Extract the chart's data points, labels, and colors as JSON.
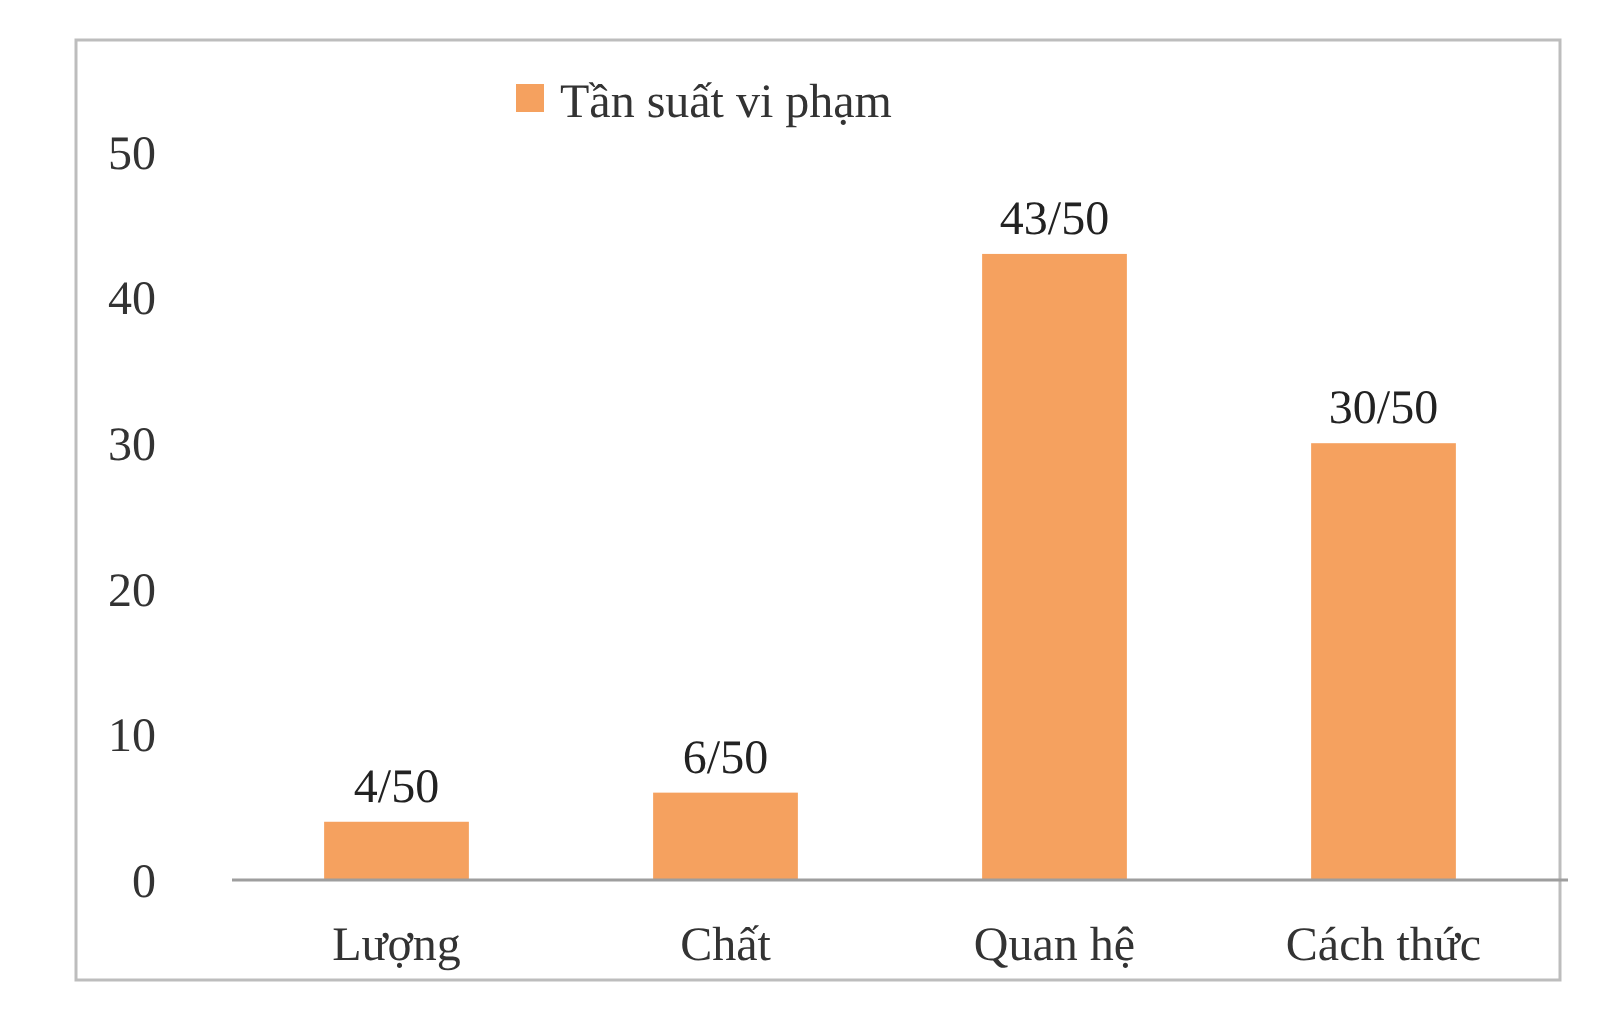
{
  "chart_data": {
    "type": "bar",
    "categories": [
      "Lượng",
      "Chất",
      "Quan hệ",
      "Cách thức"
    ],
    "series": [
      {
        "name": "Tần suất vi phạm",
        "color": "#f5a15f",
        "values": [
          4,
          6,
          43,
          30
        ],
        "value_labels": [
          "4/50",
          "6/50",
          "43/50",
          "30/50"
        ]
      }
    ],
    "ylim": [
      0,
      50
    ],
    "yticks": [
      0,
      10,
      20,
      30,
      40,
      50
    ],
    "grid": false,
    "legend": "top"
  }
}
